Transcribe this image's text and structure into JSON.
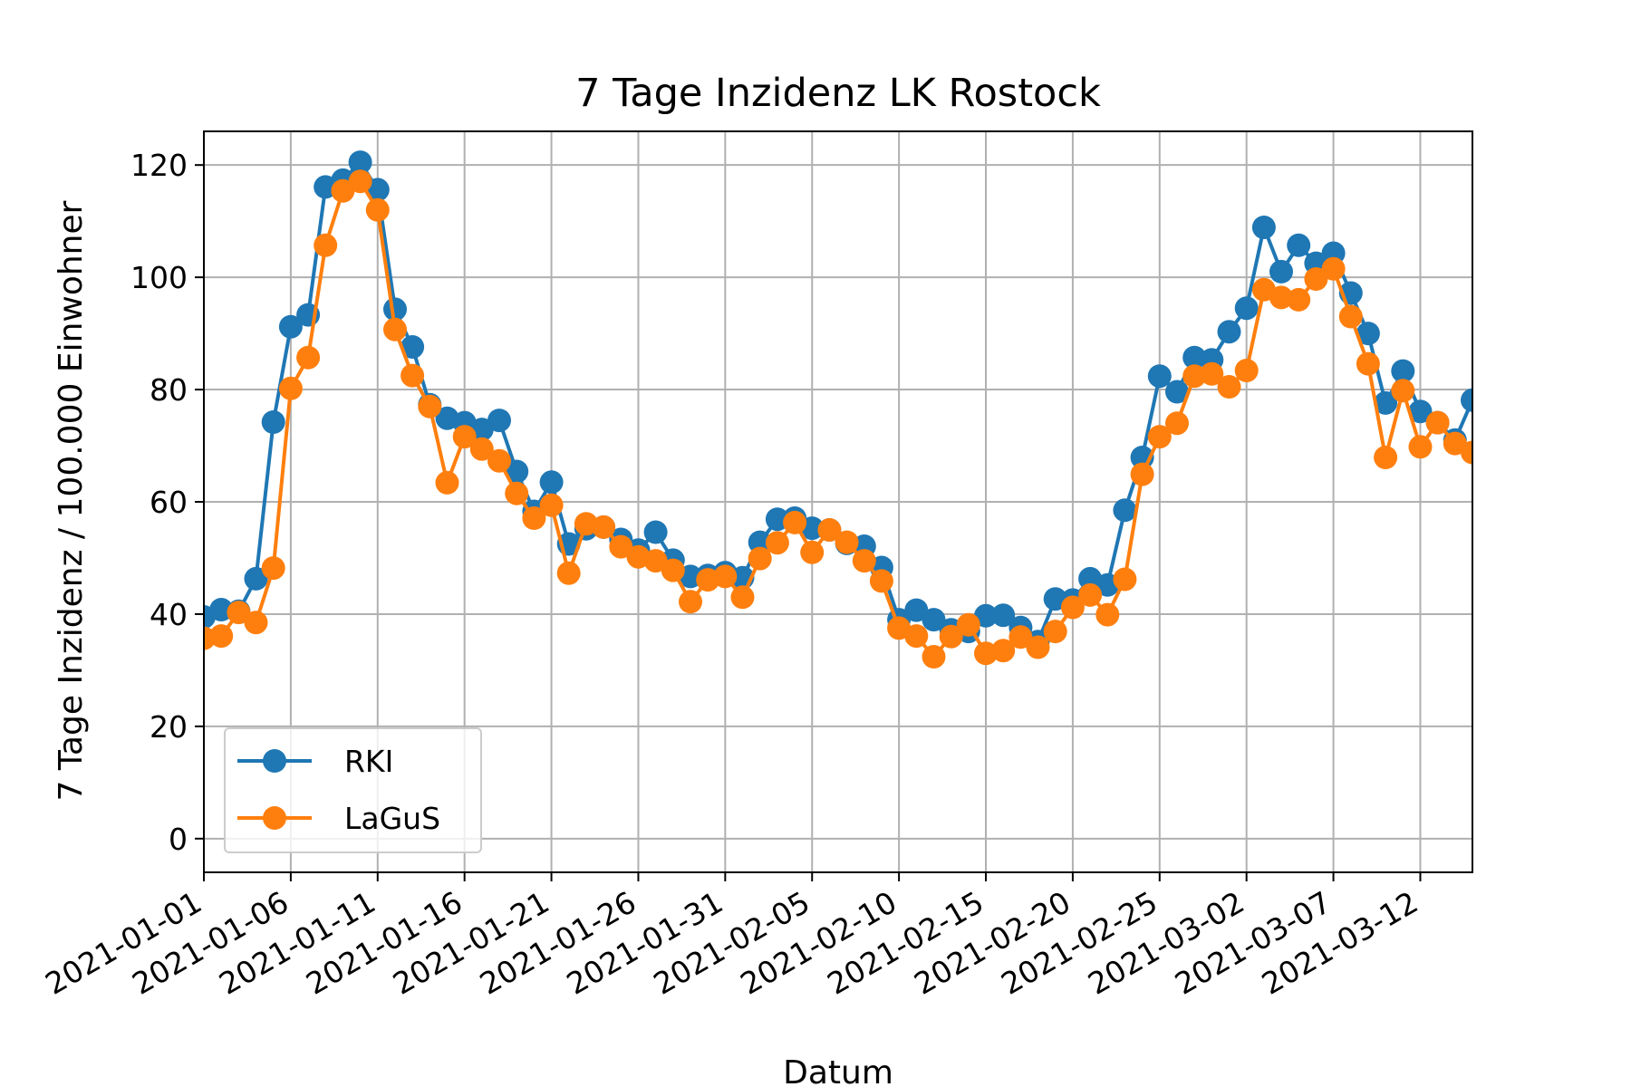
{
  "chart_data": {
    "type": "line",
    "title": "7 Tage Inzidenz LK Rostock",
    "xlabel": "Datum",
    "ylabel": "7 Tage Inzidenz / 100.000 Einwohner",
    "x_start": "2021-01-01",
    "x_end": "2021-03-15",
    "xlim": [
      "2021-01-01",
      "2021-03-15"
    ],
    "ylim": [
      -6,
      126
    ],
    "x_ticks": [
      "2021-01-01",
      "2021-01-06",
      "2021-01-11",
      "2021-01-16",
      "2021-01-21",
      "2021-01-26",
      "2021-01-31",
      "2021-02-05",
      "2021-02-10",
      "2021-02-15",
      "2021-02-20",
      "2021-02-25",
      "2021-03-02",
      "2021-03-07",
      "2021-03-12"
    ],
    "y_ticks": [
      "0",
      "20",
      "40",
      "60",
      "80",
      "100",
      "120"
    ],
    "grid": true,
    "legend_position": "lower-left",
    "series": [
      {
        "name": "RKI",
        "color": "#1f77b4",
        "marker": "circle",
        "values": [
          39.5,
          40.8,
          40.5,
          46.3,
          74.2,
          91.2,
          93.3,
          116.1,
          117.3,
          120.5,
          115.6,
          94.3,
          87.6,
          77.3,
          74.9,
          74.1,
          72.9,
          74.5,
          65.4,
          58.3,
          63.5,
          52.5,
          55.2,
          55.5,
          53.3,
          51.4,
          54.6,
          49.6,
          46.7,
          46.9,
          47.4,
          46.5,
          52.8,
          56.9,
          57.1,
          55.3,
          55.0,
          52.6,
          52.1,
          48.3,
          39.0,
          40.7,
          39.0,
          37.2,
          36.9,
          39.7,
          39.8,
          37.6,
          35.1,
          42.7,
          42.5,
          46.3,
          45.2,
          58.5,
          67.9,
          82.4,
          79.6,
          85.7,
          85.3,
          90.3,
          94.5,
          108.9,
          101.0,
          105.7,
          102.5,
          104.3,
          97.2,
          90.0,
          77.6,
          83.3,
          76.1,
          74.1,
          71.0,
          78.1
        ]
      },
      {
        "name": "LaGuS",
        "color": "#ff7f0e",
        "marker": "circle",
        "values": [
          35.7,
          36.1,
          40.3,
          38.5,
          48.2,
          80.2,
          85.7,
          105.7,
          115.4,
          117.1,
          112.0,
          90.7,
          82.5,
          77.0,
          63.4,
          71.6,
          69.4,
          67.3,
          61.5,
          57.1,
          59.4,
          47.3,
          56.1,
          55.5,
          52.0,
          50.2,
          49.5,
          47.8,
          42.2,
          46.1,
          46.7,
          43.0,
          49.9,
          52.7,
          56.3,
          51.0,
          55.0,
          52.8,
          49.5,
          45.9,
          37.5,
          36.1,
          32.4,
          36.0,
          38.1,
          33.0,
          33.5,
          35.9,
          34.1,
          36.9,
          41.2,
          43.4,
          39.9,
          46.2,
          64.9,
          71.6,
          74.0,
          82.4,
          82.8,
          80.5,
          83.4,
          97.8,
          96.4,
          96.0,
          99.7,
          101.5,
          93.0,
          84.6,
          67.9,
          79.8,
          69.8,
          74.1,
          70.4,
          68.8
        ]
      }
    ]
  }
}
